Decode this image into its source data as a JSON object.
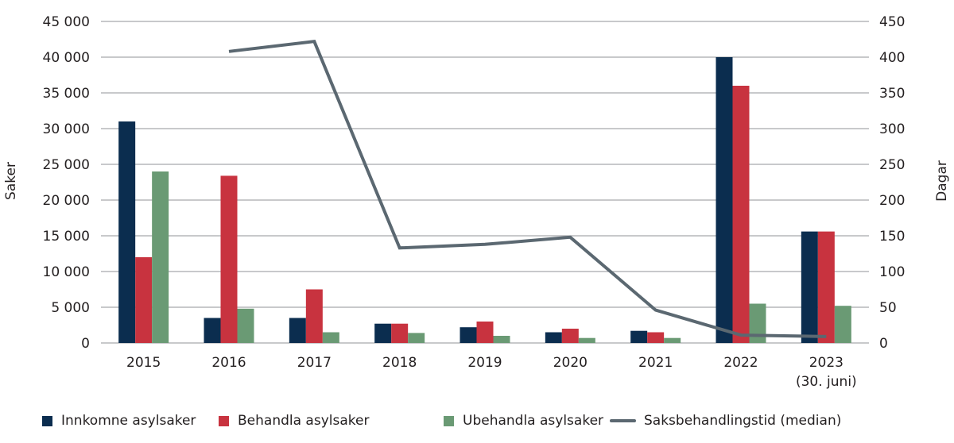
{
  "chart_data": {
    "type": "bar+line",
    "title": "",
    "categories": [
      "2015",
      "2016",
      "2017",
      "2018",
      "2019",
      "2020",
      "2021",
      "2022",
      "2023\n(30. juni)"
    ],
    "category_labels": [
      {
        "line1": "2015",
        "line2": ""
      },
      {
        "line1": "2016",
        "line2": ""
      },
      {
        "line1": "2017",
        "line2": ""
      },
      {
        "line1": "2018",
        "line2": ""
      },
      {
        "line1": "2019",
        "line2": ""
      },
      {
        "line1": "2020",
        "line2": ""
      },
      {
        "line1": "2021",
        "line2": ""
      },
      {
        "line1": "2022",
        "line2": ""
      },
      {
        "line1": "2023",
        "line2": "(30. juni)"
      }
    ],
    "series": [
      {
        "name": "Innkomne asylsaker",
        "type": "bar",
        "axis": "left",
        "color": "#0b2d4f",
        "values": [
          31000,
          3500,
          3500,
          2700,
          2200,
          1500,
          1700,
          40000,
          15600
        ]
      },
      {
        "name": "Behandla asylsaker",
        "type": "bar",
        "axis": "left",
        "color": "#c8333f",
        "values": [
          12000,
          23400,
          7500,
          2700,
          3000,
          2000,
          1500,
          36000,
          15600
        ]
      },
      {
        "name": "Ubehandla asylsaker",
        "type": "bar",
        "axis": "left",
        "color": "#6a9a74",
        "values": [
          24000,
          4800,
          1500,
          1400,
          1000,
          700,
          700,
          5500,
          5200
        ]
      },
      {
        "name": "Saksbehandlingstid (median)",
        "type": "line",
        "axis": "right",
        "color": "#5b6871",
        "values": [
          null,
          408,
          422,
          133,
          138,
          148,
          46,
          11,
          9
        ]
      }
    ],
    "ylabel": "Saker",
    "y2label": "Dagar",
    "ylim": [
      0,
      45000
    ],
    "y2lim": [
      0,
      450
    ],
    "yticks": [
      "0",
      "5 000",
      "10 000",
      "15 000",
      "20 000",
      "25 000",
      "30 000",
      "35 000",
      "40 000",
      "45 000"
    ],
    "y2ticks": [
      "0",
      "50",
      "100",
      "150",
      "200",
      "250",
      "300",
      "350",
      "400",
      "450"
    ],
    "grid": true,
    "legend_position": "bottom"
  },
  "legend": [
    {
      "label": "Innkomne asylsaker",
      "color": "#0b2d4f",
      "kind": "square"
    },
    {
      "label": "Behandla asylsaker",
      "color": "#c8333f",
      "kind": "square"
    },
    {
      "label": "Ubehandla asylsaker",
      "color": "#6a9a74",
      "kind": "square"
    },
    {
      "label": "Saksbehandlingstid (median)",
      "color": "#5b6871",
      "kind": "line"
    }
  ],
  "colors": {
    "grid": "#a7a9ac",
    "text": "#231f20"
  }
}
